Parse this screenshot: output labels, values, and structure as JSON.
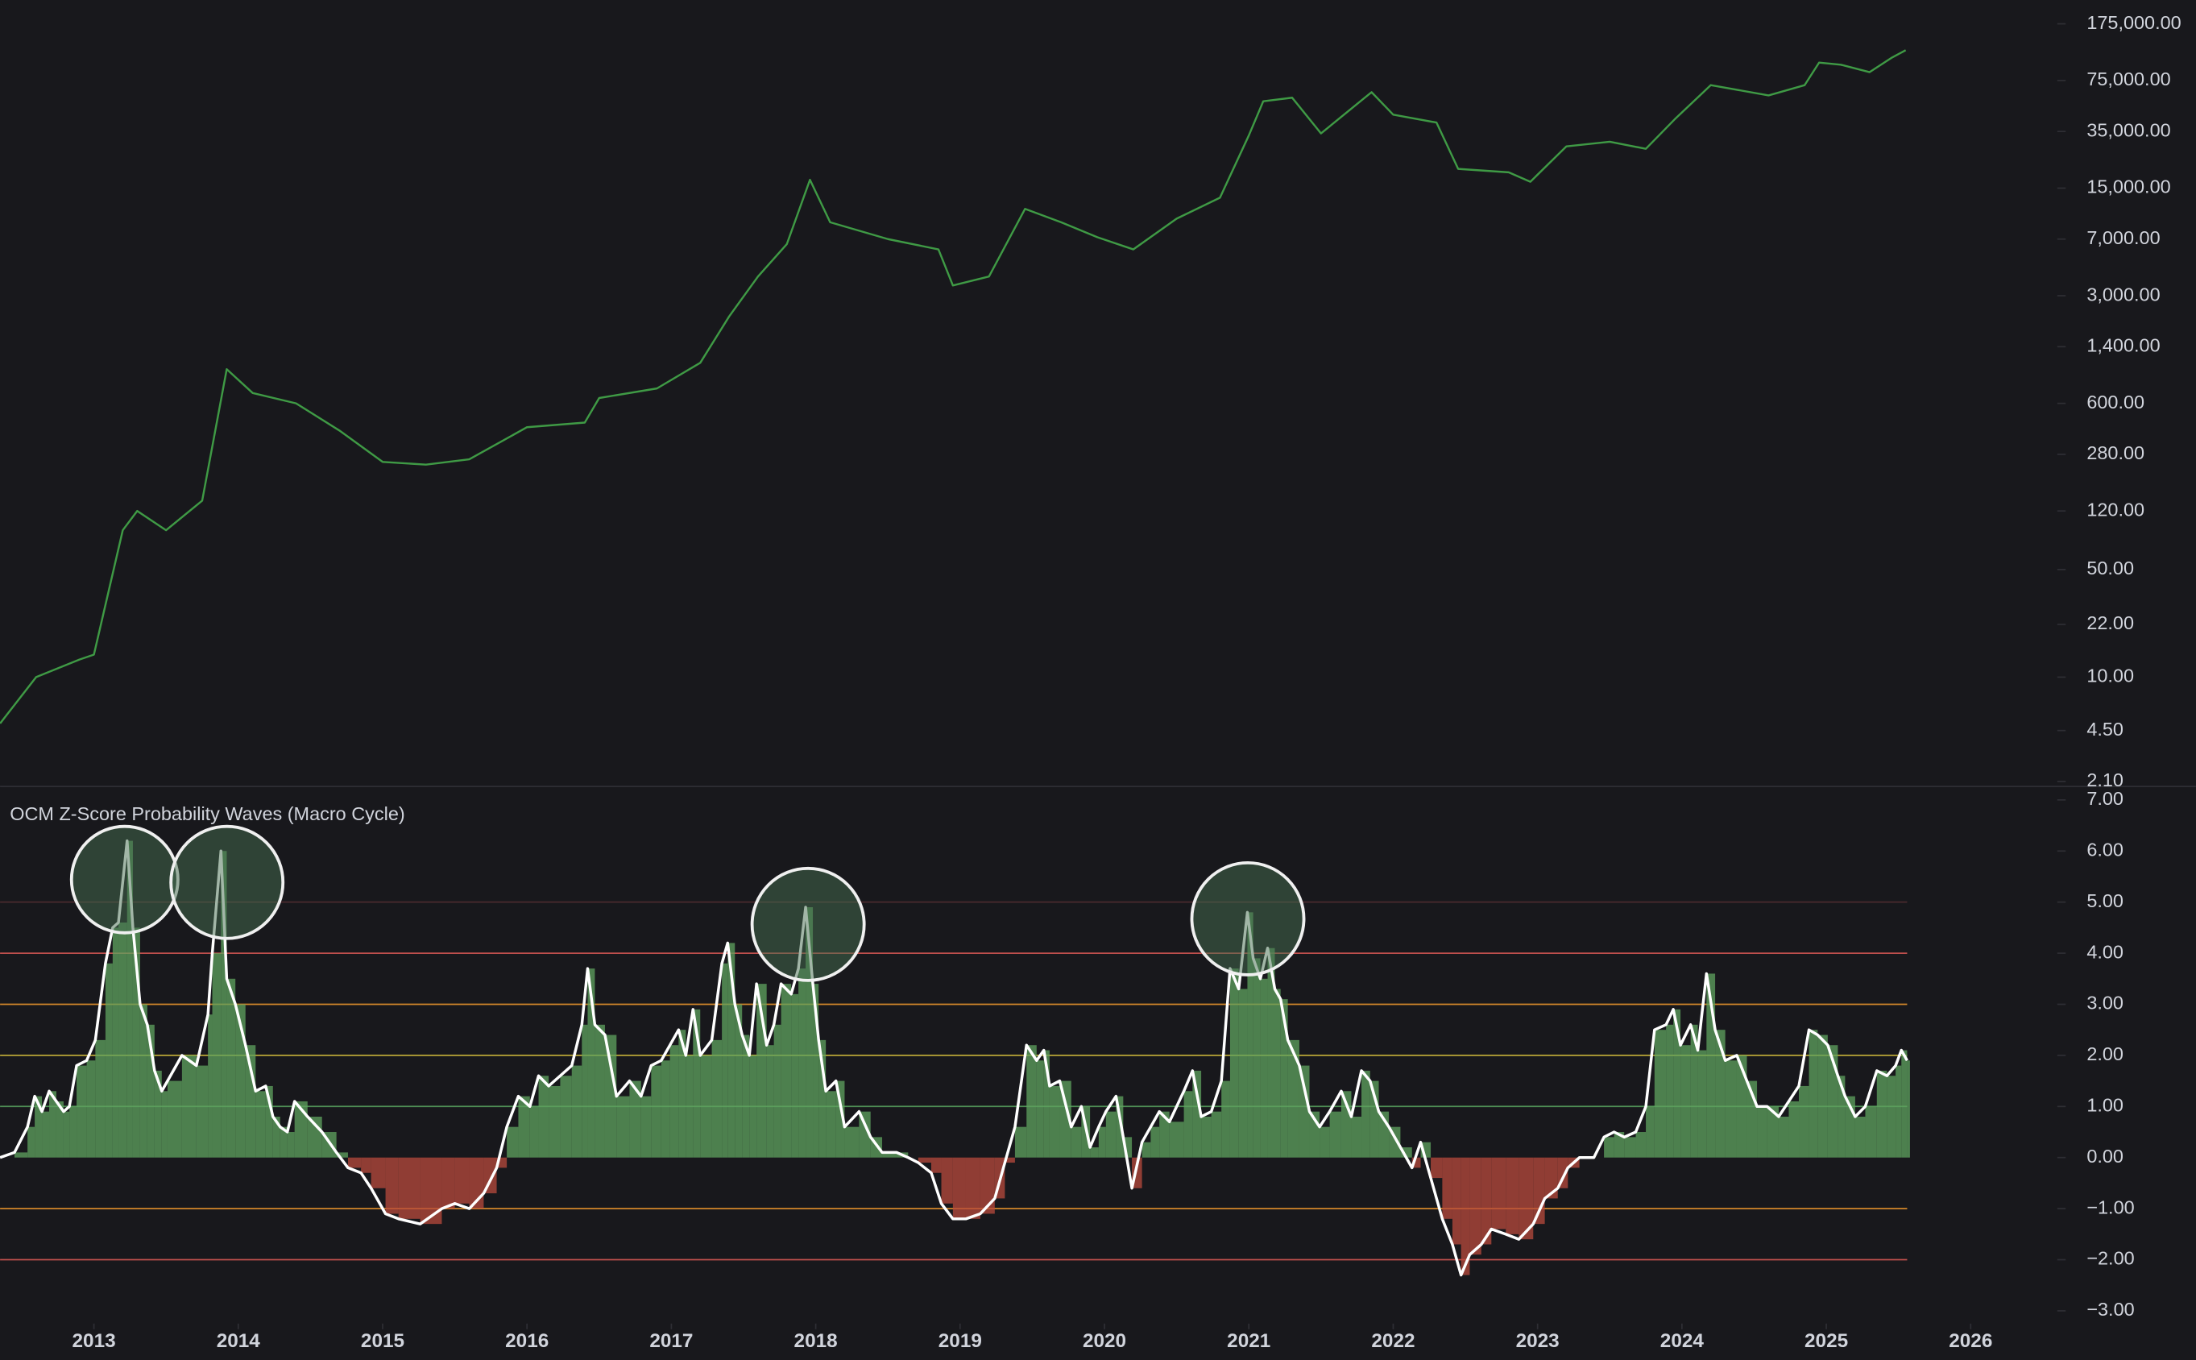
{
  "chart_data": [
    {
      "type": "line",
      "log_scale": true,
      "color": "#3f9a45",
      "xlim": [
        2012.35,
        2026.6
      ],
      "ylim": [
        1.97,
        250000
      ],
      "yticks": [
        {
          "value": 175000,
          "label": "175,000.00"
        },
        {
          "value": 75000,
          "label": "75,000.00"
        },
        {
          "value": 35000,
          "label": "35,000.00"
        },
        {
          "value": 15000,
          "label": "15,000.00"
        },
        {
          "value": 7000,
          "label": "7,000.00"
        },
        {
          "value": 3000,
          "label": "3,000.00"
        },
        {
          "value": 1400,
          "label": "1,400.00"
        },
        {
          "value": 600,
          "label": "600.00"
        },
        {
          "value": 280,
          "label": "280.00"
        },
        {
          "value": 120,
          "label": "120.00"
        },
        {
          "value": 50,
          "label": "50.00"
        },
        {
          "value": 22,
          "label": "22.00"
        },
        {
          "value": 10,
          "label": "10.00"
        },
        {
          "value": 4.5,
          "label": "4.50"
        },
        {
          "value": 2.1,
          "label": "2.10"
        }
      ],
      "x": [
        2012.35,
        2012.6,
        2012.9,
        2013.0,
        2013.2,
        2013.3,
        2013.5,
        2013.75,
        2013.92,
        2014.1,
        2014.4,
        2014.7,
        2015.0,
        2015.3,
        2015.6,
        2015.8,
        2016.0,
        2016.4,
        2016.5,
        2016.9,
        2017.2,
        2017.4,
        2017.6,
        2017.8,
        2017.96,
        2018.1,
        2018.5,
        2018.85,
        2018.95,
        2019.2,
        2019.45,
        2019.7,
        2019.95,
        2020.2,
        2020.5,
        2020.8,
        2021.0,
        2021.1,
        2021.3,
        2021.5,
        2021.85,
        2022.0,
        2022.3,
        2022.45,
        2022.8,
        2022.95,
        2023.2,
        2023.5,
        2023.75,
        2023.95,
        2024.2,
        2024.6,
        2024.85,
        2024.95,
        2025.1,
        2025.3,
        2025.45,
        2025.55
      ],
      "values": [
        5,
        10,
        13,
        14,
        90,
        120,
        90,
        140,
        1000,
        700,
        600,
        400,
        250,
        240,
        260,
        330,
        420,
        450,
        650,
        750,
        1100,
        2200,
        4000,
        6500,
        17000,
        9000,
        7000,
        6000,
        3500,
        4000,
        11000,
        9000,
        7200,
        6000,
        9500,
        13000,
        33000,
        55000,
        58000,
        34000,
        63000,
        45000,
        40000,
        20000,
        19000,
        16500,
        28000,
        30000,
        27000,
        42000,
        70000,
        60000,
        70000,
        98000,
        95000,
        85000,
        105000,
        118000
      ]
    },
    {
      "type": "bar",
      "title": "OCM Z-Score Probability Waves (Macro Cycle)",
      "positive_color": "#5fa35f",
      "negative_color": "#b84a3c",
      "line_color": "#ffffff",
      "xlim": [
        2012.35,
        2026.6
      ],
      "ylim": [
        -3.25,
        7.25
      ],
      "xticks": [
        2013,
        2014,
        2015,
        2016,
        2017,
        2018,
        2019,
        2020,
        2021,
        2022,
        2023,
        2024,
        2025,
        2026
      ],
      "yticks": [
        {
          "value": 7,
          "label": "7.00"
        },
        {
          "value": 6,
          "label": "6.00"
        },
        {
          "value": 5,
          "label": "5.00"
        },
        {
          "value": 4,
          "label": "4.00"
        },
        {
          "value": 3,
          "label": "3.00"
        },
        {
          "value": 2,
          "label": "2.00"
        },
        {
          "value": 1,
          "label": "1.00"
        },
        {
          "value": 0,
          "label": "0.00"
        },
        {
          "value": -1,
          "label": "−1.00"
        },
        {
          "value": -2,
          "label": "−2.00"
        },
        {
          "value": -3,
          "label": "−3.00"
        }
      ],
      "reference_lines": [
        {
          "value": 5,
          "color": "#4a2a2e"
        },
        {
          "value": 4,
          "color": "#c0504d"
        },
        {
          "value": 3,
          "color": "#d4872a"
        },
        {
          "value": 2,
          "color": "#b9a636"
        },
        {
          "value": 1,
          "color": "#4f8f55"
        },
        {
          "value": -1,
          "color": "#d4872a"
        },
        {
          "value": -2,
          "color": "#c0504d"
        }
      ],
      "x": [
        2012.35,
        2012.45,
        2012.54,
        2012.59,
        2012.64,
        2012.69,
        2012.74,
        2012.79,
        2012.83,
        2012.88,
        2012.95,
        2013.01,
        2013.08,
        2013.13,
        2013.17,
        2013.23,
        2013.27,
        2013.32,
        2013.37,
        2013.42,
        2013.47,
        2013.51,
        2013.61,
        2013.71,
        2013.79,
        2013.82,
        2013.88,
        2013.92,
        2013.98,
        2014.05,
        2014.12,
        2014.19,
        2014.24,
        2014.29,
        2014.34,
        2014.39,
        2014.48,
        2014.58,
        2014.68,
        2014.76,
        2014.85,
        2014.92,
        2015.02,
        2015.11,
        2015.26,
        2015.41,
        2015.5,
        2015.6,
        2015.7,
        2015.79,
        2015.86,
        2015.94,
        2016.02,
        2016.08,
        2016.15,
        2016.23,
        2016.31,
        2016.38,
        2016.42,
        2016.47,
        2016.54,
        2016.62,
        2016.71,
        2016.79,
        2016.86,
        2016.93,
        2016.99,
        2017.05,
        2017.1,
        2017.15,
        2017.2,
        2017.28,
        2017.35,
        2017.39,
        2017.44,
        2017.49,
        2017.54,
        2017.59,
        2017.66,
        2017.71,
        2017.76,
        2017.83,
        2017.88,
        2017.93,
        2017.98,
        2018.02,
        2018.07,
        2018.14,
        2018.2,
        2018.3,
        2018.38,
        2018.46,
        2018.56,
        2018.64,
        2018.71,
        2018.8,
        2018.87,
        2018.95,
        2019.04,
        2019.14,
        2019.24,
        2019.31,
        2019.38,
        2019.46,
        2019.53,
        2019.58,
        2019.62,
        2019.69,
        2019.77,
        2019.84,
        2019.9,
        2019.96,
        2020.01,
        2020.08,
        2020.13,
        2020.19,
        2020.26,
        2020.32,
        2020.38,
        2020.45,
        2020.55,
        2020.61,
        2020.67,
        2020.74,
        2020.81,
        2020.87,
        2020.93,
        2020.99,
        2021.03,
        2021.08,
        2021.13,
        2021.18,
        2021.22,
        2021.27,
        2021.35,
        2021.42,
        2021.49,
        2021.56,
        2021.64,
        2021.71,
        2021.78,
        2021.84,
        2021.9,
        2021.97,
        2022.05,
        2022.13,
        2022.19,
        2022.26,
        2022.34,
        2022.41,
        2022.47,
        2022.53,
        2022.61,
        2022.68,
        2022.78,
        2022.87,
        2022.97,
        2023.05,
        2023.14,
        2023.21,
        2023.29,
        2023.39,
        2023.46,
        2023.53,
        2023.6,
        2023.68,
        2023.75,
        2023.81,
        2023.89,
        2023.94,
        2023.99,
        2024.06,
        2024.11,
        2024.17,
        2024.23,
        2024.3,
        2024.38,
        2024.45,
        2024.52,
        2024.59,
        2024.67,
        2024.74,
        2024.81,
        2024.88,
        2024.94,
        2025.01,
        2025.08,
        2025.13,
        2025.2,
        2025.27,
        2025.35,
        2025.42,
        2025.48,
        2025.52,
        2025.56
      ],
      "values": [
        0.0,
        0.1,
        0.6,
        1.2,
        0.9,
        1.3,
        1.1,
        0.9,
        1.0,
        1.8,
        1.9,
        2.3,
        3.8,
        4.5,
        4.6,
        6.2,
        4.5,
        3.0,
        2.6,
        1.7,
        1.3,
        1.5,
        2.0,
        1.8,
        2.8,
        4.0,
        6.0,
        3.5,
        3.0,
        2.2,
        1.3,
        1.4,
        0.8,
        0.6,
        0.5,
        1.1,
        0.8,
        0.5,
        0.1,
        -0.2,
        -0.3,
        -0.6,
        -1.1,
        -1.2,
        -1.3,
        -1.0,
        -0.9,
        -1.0,
        -0.7,
        -0.2,
        0.6,
        1.2,
        1.0,
        1.6,
        1.4,
        1.6,
        1.8,
        2.6,
        3.7,
        2.6,
        2.4,
        1.2,
        1.5,
        1.2,
        1.8,
        1.9,
        2.2,
        2.5,
        2.0,
        2.9,
        2.0,
        2.3,
        3.8,
        4.2,
        3.0,
        2.4,
        2.0,
        3.4,
        2.2,
        2.6,
        3.4,
        3.2,
        3.7,
        4.9,
        3.4,
        2.3,
        1.3,
        1.5,
        0.6,
        0.9,
        0.4,
        0.1,
        0.1,
        0.0,
        -0.1,
        -0.3,
        -0.9,
        -1.2,
        -1.2,
        -1.1,
        -0.8,
        -0.1,
        0.6,
        2.2,
        1.9,
        2.1,
        1.4,
        1.5,
        0.6,
        1.0,
        0.2,
        0.6,
        0.9,
        1.2,
        0.4,
        -0.6,
        0.3,
        0.6,
        0.9,
        0.7,
        1.3,
        1.7,
        0.8,
        0.9,
        1.5,
        3.7,
        3.3,
        4.8,
        3.9,
        3.5,
        4.1,
        3.3,
        3.1,
        2.3,
        1.8,
        0.9,
        0.6,
        0.9,
        1.3,
        0.8,
        1.7,
        1.5,
        0.9,
        0.6,
        0.2,
        -0.2,
        0.3,
        -0.4,
        -1.2,
        -1.7,
        -2.3,
        -1.9,
        -1.7,
        -1.4,
        -1.5,
        -1.6,
        -1.3,
        -0.8,
        -0.6,
        -0.2,
        0.0,
        0.0,
        0.4,
        0.5,
        0.4,
        0.5,
        1.0,
        2.5,
        2.6,
        2.9,
        2.2,
        2.6,
        2.1,
        3.6,
        2.5,
        1.9,
        2.0,
        1.5,
        1.0,
        1.0,
        0.8,
        1.1,
        1.4,
        2.5,
        2.4,
        2.2,
        1.6,
        1.2,
        0.8,
        1.0,
        1.7,
        1.6,
        1.8,
        2.1,
        1.9
      ]
    }
  ]
}
